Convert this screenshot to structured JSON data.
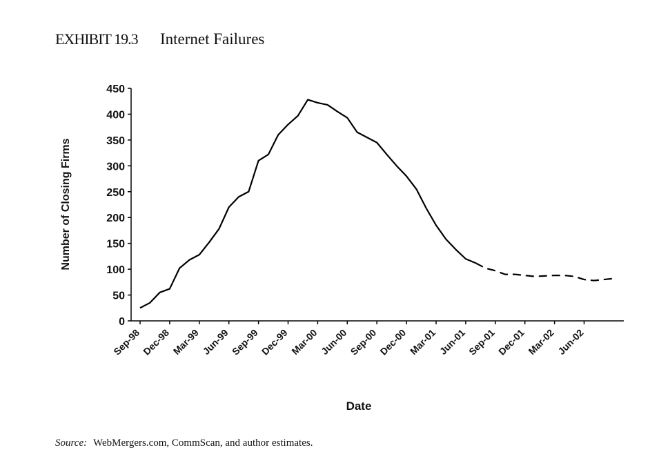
{
  "chart_data": {
    "type": "line",
    "exhibit": "EXHIBIT 19.3",
    "title": "Internet Failures",
    "ylabel": "Number of Closing Firms",
    "xlabel": "Date",
    "source_label": "Source:",
    "source_text": "WebMergers.com, CommScan, and author estimates.",
    "categories": [
      "Sep-98",
      null,
      null,
      "Dec-98",
      null,
      null,
      "Mar-99",
      null,
      null,
      "Jun-99",
      null,
      null,
      "Sep-99",
      null,
      null,
      "Dec-99",
      null,
      null,
      "Mar-00",
      null,
      null,
      "Jun-00",
      null,
      null,
      "Sep-00",
      null,
      null,
      "Dec-00",
      null,
      null,
      "Mar-01",
      null,
      null,
      "Jun-01",
      null,
      null,
      "Sep-01",
      null,
      null,
      "Dec-01",
      null,
      null,
      "Mar-02",
      null,
      null,
      "Jun-02",
      null,
      null,
      null
    ],
    "series": [
      {
        "color": "#000000",
        "dashed": false,
        "values": [
          25,
          35,
          55,
          62,
          102,
          118,
          128,
          152,
          178,
          220,
          240,
          250,
          310,
          322,
          360,
          380,
          397,
          428,
          422,
          418,
          405,
          393,
          365,
          355,
          345,
          322,
          300,
          280,
          255,
          218,
          185,
          158,
          138,
          120,
          112,
          null,
          null,
          null,
          null,
          null,
          null,
          null,
          null,
          null,
          null,
          null,
          null,
          null,
          null
        ]
      },
      {
        "color": "#000000",
        "dashed": true,
        "values": [
          null,
          null,
          null,
          null,
          null,
          null,
          null,
          null,
          null,
          null,
          null,
          null,
          null,
          null,
          null,
          null,
          null,
          null,
          null,
          null,
          null,
          null,
          null,
          null,
          null,
          null,
          null,
          null,
          null,
          null,
          null,
          null,
          null,
          null,
          112,
          102,
          97,
          90,
          90,
          88,
          86,
          87,
          88,
          88,
          86,
          80,
          78,
          80,
          82
        ]
      }
    ],
    "ylim": [
      0,
      450
    ],
    "yticks": [
      0,
      50,
      100,
      150,
      200,
      250,
      300,
      350,
      400,
      450
    ]
  }
}
